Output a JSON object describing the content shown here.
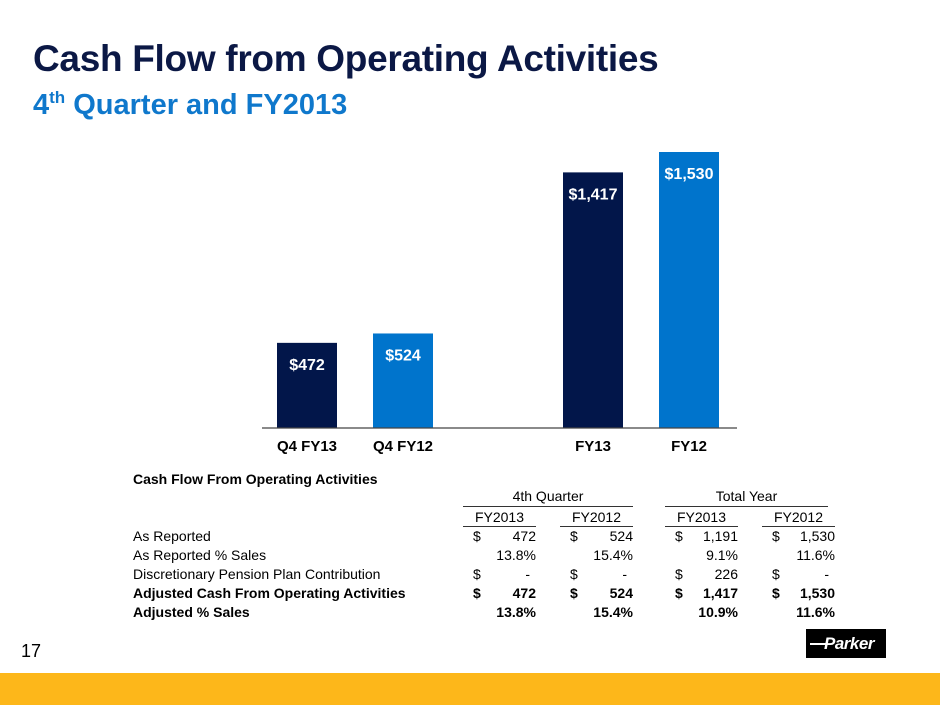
{
  "header": {
    "title": "Cash Flow from Operating Activities",
    "subtitle_prefix": "4",
    "subtitle_sup": "th",
    "subtitle_rest": " Quarter and FY2013"
  },
  "colors": {
    "dark_navy": "#02164a",
    "bright_blue": "#0074cc",
    "title": "#0b1845",
    "subtitle": "#0f78cc",
    "footer": "#fdb71a"
  },
  "chart_data": {
    "type": "bar",
    "title": "Cash Flow from Operating Activities",
    "categories": [
      "Q4 FY13",
      "Q4 FY12",
      "FY13",
      "FY12"
    ],
    "values": [
      472,
      524,
      1417,
      1530
    ],
    "data_labels": [
      "$472",
      "$524",
      "$1,417",
      "$1,530"
    ],
    "series_colors": [
      "#02164a",
      "#0074cc",
      "#02164a",
      "#0074cc"
    ],
    "xlabel": "",
    "ylabel": "",
    "ylim": [
      0,
      1530
    ],
    "grid": false,
    "legend": "none"
  },
  "table": {
    "title": "Cash Flow From Operating Activities",
    "groups": [
      "4th Quarter",
      "Total Year"
    ],
    "years": [
      "FY2013",
      "FY2012",
      "FY2013",
      "FY2012"
    ],
    "rows": [
      {
        "label": "As Reported",
        "bold": false,
        "currency": [
          "$",
          "$",
          "$",
          "$"
        ],
        "values": [
          "472",
          "524",
          "1,191",
          "1,530"
        ]
      },
      {
        "label": "As Reported % Sales",
        "bold": false,
        "currency": [
          "",
          "",
          "",
          ""
        ],
        "values": [
          "13.8%",
          "15.4%",
          "9.1%",
          "11.6%"
        ]
      },
      {
        "label": "Discretionary Pension Plan Contribution",
        "bold": false,
        "currency": [
          "$",
          "$",
          "$",
          "$"
        ],
        "values": [
          "-",
          "-",
          "226",
          "-"
        ]
      },
      {
        "label": "Adjusted Cash From Operating Activities",
        "bold": true,
        "currency": [
          "$",
          "$",
          "$",
          "$"
        ],
        "values": [
          "472",
          "524",
          "1,417",
          "1,530"
        ]
      },
      {
        "label": "Adjusted % Sales",
        "bold": true,
        "currency": [
          "",
          "",
          "",
          ""
        ],
        "values": [
          "13.8%",
          "15.4%",
          "10.9%",
          "11.6%"
        ]
      }
    ]
  },
  "footer": {
    "page_number": "17",
    "logo_text": "Parker"
  }
}
